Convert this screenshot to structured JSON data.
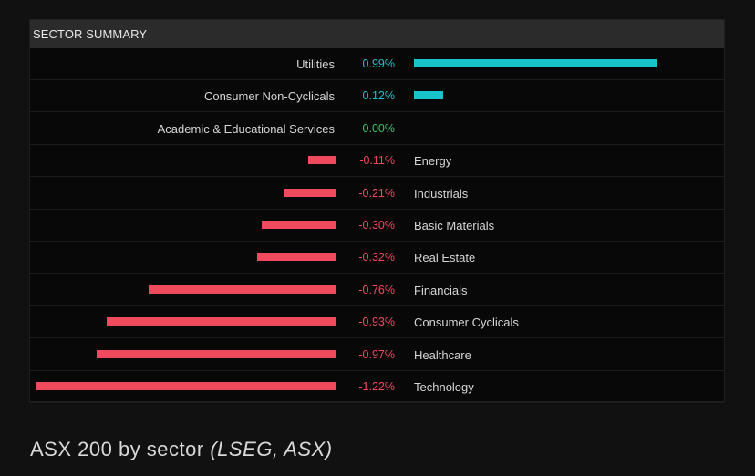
{
  "header": {
    "title": "SECTOR SUMMARY"
  },
  "colors": {
    "positive": "#19c3cb",
    "zero": "#3ec46d",
    "negative": "#f04a5f"
  },
  "chart_data": {
    "type": "bar",
    "orientation": "horizontal",
    "title": "SECTOR SUMMARY",
    "unit": "%",
    "categories": [
      "Utilities",
      "Consumer Non-Cyclicals",
      "Academic & Educational Services",
      "Energy",
      "Industrials",
      "Basic Materials",
      "Real Estate",
      "Financials",
      "Consumer Cyclicals",
      "Healthcare",
      "Technology"
    ],
    "values": [
      0.99,
      0.12,
      0.0,
      -0.11,
      -0.21,
      -0.3,
      -0.32,
      -0.76,
      -0.93,
      -0.97,
      -1.22
    ],
    "labels": [
      "0.99%",
      "0.12%",
      "0.00%",
      "-0.11%",
      "-0.21%",
      "-0.30%",
      "-0.32%",
      "-0.76%",
      "-0.93%",
      "-0.97%",
      "-1.22%"
    ]
  },
  "caption": {
    "text": "ASX 200 by sector ",
    "source": "(LSEG, ASX)"
  }
}
